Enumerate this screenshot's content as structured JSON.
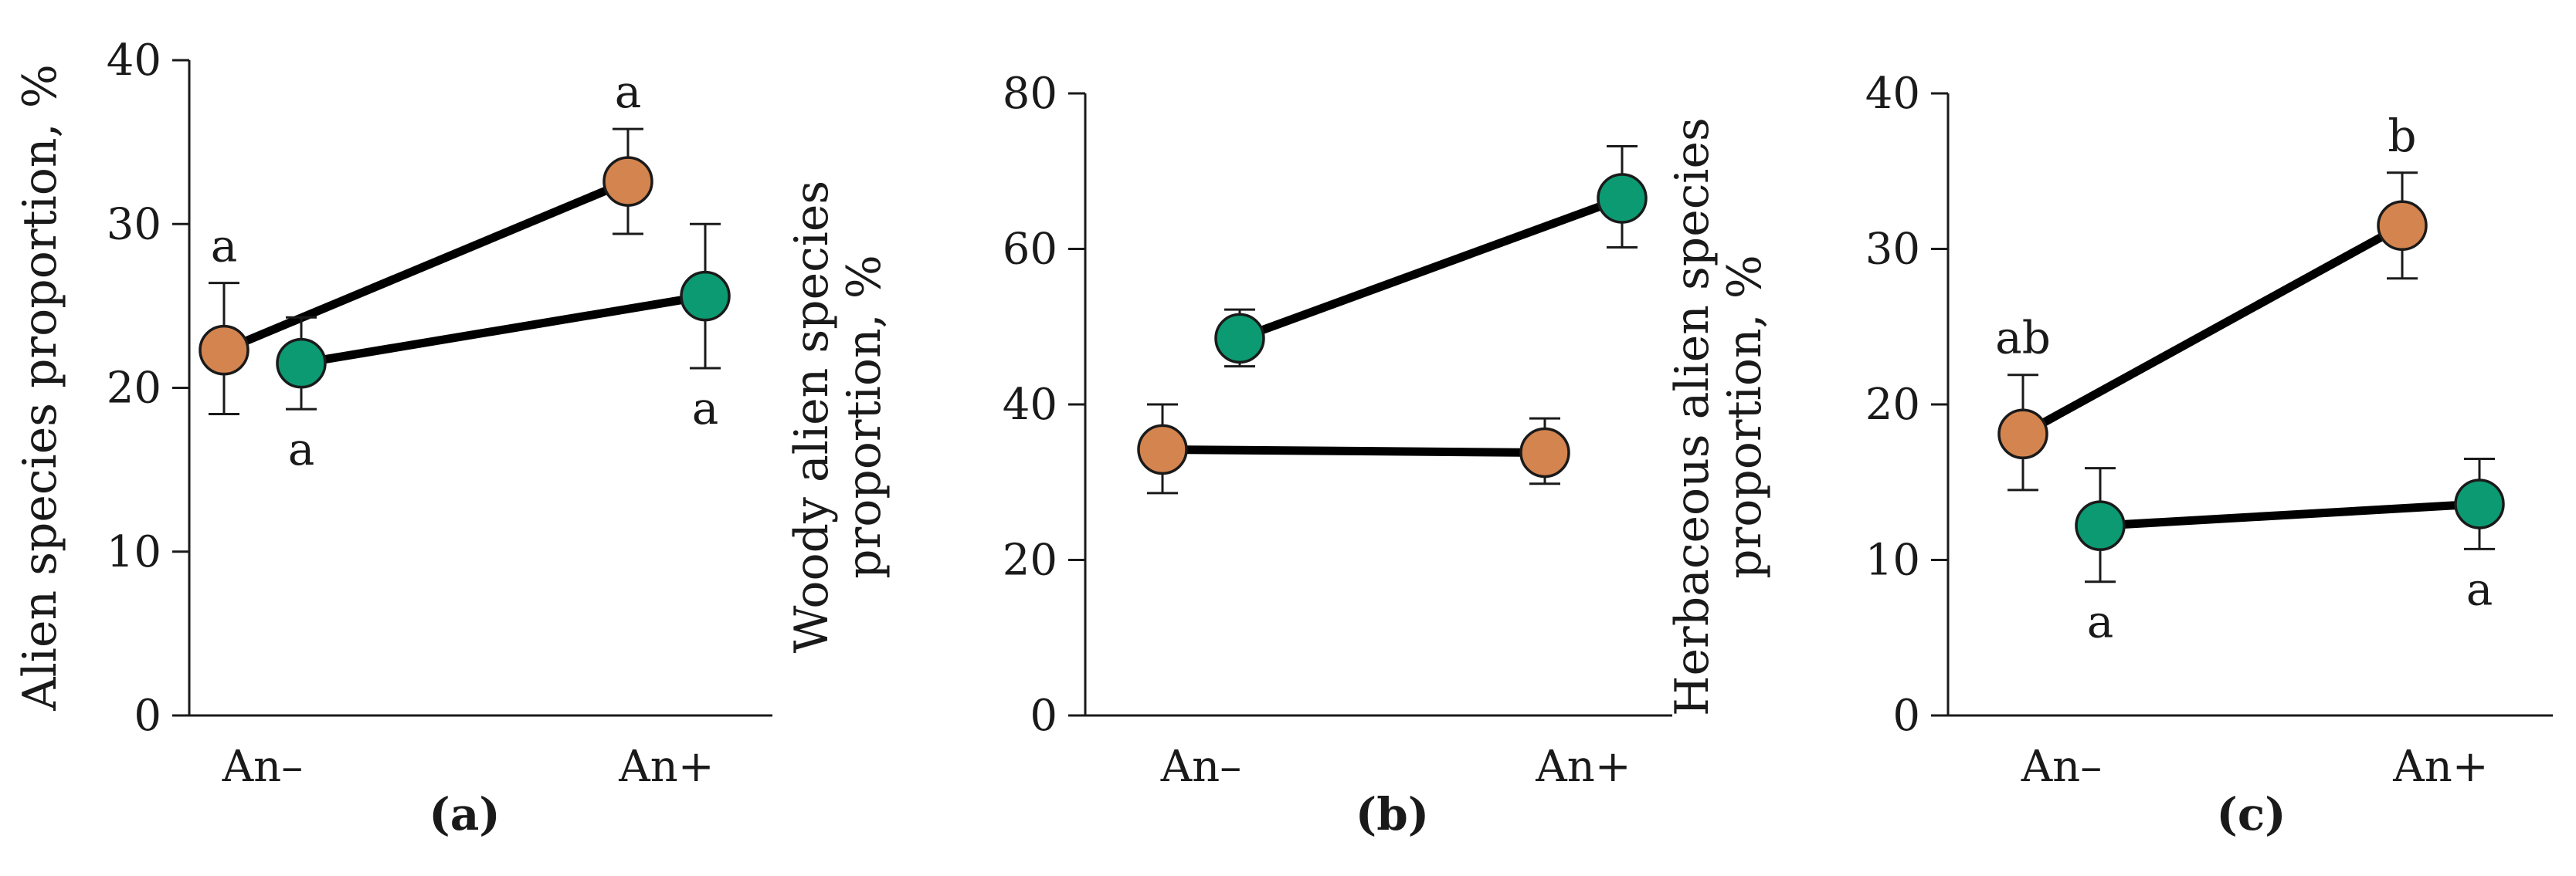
{
  "colors": {
    "orange": "#d4844f",
    "green": "#0b9a72"
  },
  "chart_data": [
    {
      "type": "line",
      "panel": "(a)",
      "ylabel": "Alien species proportion, %",
      "categories": [
        "An–",
        "An+"
      ],
      "ylim": [
        0,
        40
      ],
      "yticks": [
        0,
        10,
        20,
        30,
        40
      ],
      "series": [
        {
          "name": "orange",
          "color": "orange",
          "values": [
            22.3,
            32.6
          ],
          "err_low": [
            18.4,
            29.4
          ],
          "err_high": [
            26.4,
            35.8
          ],
          "labels": [
            "a",
            "a"
          ],
          "label_pos": [
            "above",
            "above"
          ]
        },
        {
          "name": "green",
          "color": "green",
          "values": [
            21.5,
            25.6
          ],
          "err_low": [
            18.7,
            21.2
          ],
          "err_high": [
            24.3,
            30.0
          ],
          "labels": [
            "a",
            "a"
          ],
          "label_pos": [
            "below",
            "below"
          ]
        }
      ]
    },
    {
      "type": "line",
      "panel": "(b)",
      "ylabel": "Woody alien species proportion, %",
      "categories": [
        "An–",
        "An+"
      ],
      "ylim": [
        0,
        80
      ],
      "yticks": [
        0,
        20,
        40,
        60,
        80
      ],
      "series": [
        {
          "name": "orange",
          "color": "orange",
          "values": [
            34.2,
            33.8
          ],
          "err_low": [
            28.6,
            29.8
          ],
          "err_high": [
            40.0,
            38.2
          ],
          "labels": [
            "",
            ""
          ],
          "label_pos": [
            "above",
            "above"
          ]
        },
        {
          "name": "green",
          "color": "green",
          "values": [
            48.5,
            66.5
          ],
          "err_low": [
            44.9,
            60.2
          ],
          "err_high": [
            52.2,
            73.2
          ],
          "labels": [
            "",
            ""
          ],
          "label_pos": [
            "above",
            "above"
          ]
        }
      ]
    },
    {
      "type": "line",
      "panel": "(c)",
      "ylabel": "Herbaceous alien species proportion, %",
      "categories": [
        "An–",
        "An+"
      ],
      "ylim": [
        0,
        40
      ],
      "yticks": [
        0,
        10,
        20,
        30,
        40
      ],
      "series": [
        {
          "name": "orange",
          "color": "orange",
          "values": [
            18.1,
            31.5
          ],
          "err_low": [
            14.5,
            28.1
          ],
          "err_high": [
            21.9,
            34.9
          ],
          "labels": [
            "ab",
            "b"
          ],
          "label_pos": [
            "above",
            "above"
          ]
        },
        {
          "name": "green",
          "color": "green",
          "values": [
            12.2,
            13.6
          ],
          "err_low": [
            8.6,
            10.7
          ],
          "err_high": [
            15.9,
            16.5
          ],
          "labels": [
            "a",
            "a"
          ],
          "label_pos": [
            "below",
            "below"
          ]
        }
      ]
    }
  ]
}
